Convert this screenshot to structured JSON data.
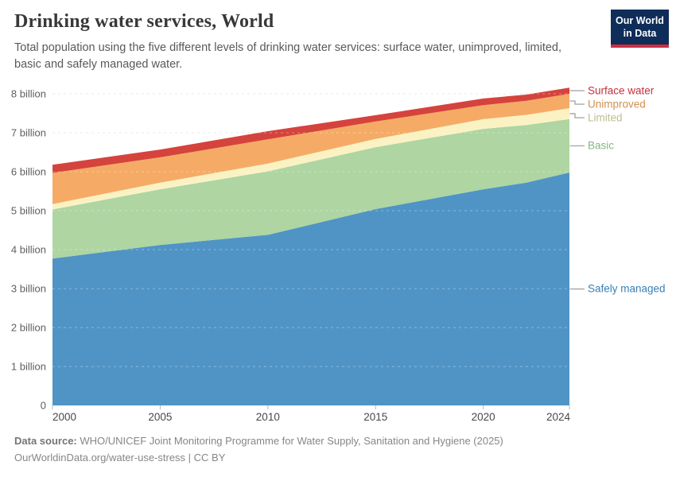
{
  "header": {
    "title": "Drinking water services, World",
    "subtitle": "Total population using the five different levels of drinking water services: surface water, unimproved, limited, basic and safely managed water.",
    "logo": {
      "line1": "Our World",
      "line2": "in Data"
    }
  },
  "footer": {
    "source_label": "Data source:",
    "source_text": "WHO/UNICEF Joint Monitoring Programme for Water Supply, Sanitation and Hygiene (2025)",
    "license_text": "OurWorldinData.org/water-use-stress | CC BY"
  },
  "colors": {
    "logo_bg": "#0f2d59",
    "logo_stripe": "#cf2e41",
    "grid": "#dcdcdc",
    "grid_overlay": "rgba(255,255,255,0.35)",
    "axis_tick": "#b8b8b8",
    "y_label": "#5e5e5e",
    "x_label": "#484848",
    "connector": "#a9a9a9"
  },
  "chart_data": {
    "type": "area",
    "stacked": true,
    "title": "Drinking water services, World",
    "unit": "billion people",
    "x": [
      2000,
      2005,
      2010,
      2015,
      2020,
      2022,
      2024
    ],
    "xlim": [
      2000,
      2024
    ],
    "ylim": [
      0,
      8.16
    ],
    "xticks": [
      2000,
      2005,
      2010,
      2015,
      2020,
      2024
    ],
    "ytick_values": [
      0,
      1,
      2,
      3,
      4,
      5,
      6,
      7,
      8
    ],
    "ytick_labels": [
      "0",
      "1 billion",
      "2 billion",
      "3 billion",
      "4 billion",
      "5 billion",
      "6 billion",
      "7 billion",
      "8 billion"
    ],
    "grid": true,
    "legend_position": "right",
    "series": [
      {
        "name": "Safely managed",
        "color": "#4f94c5",
        "label_color": "#3a80b5",
        "values": [
          3.77,
          4.12,
          4.38,
          5.04,
          5.55,
          5.72,
          5.98
        ]
      },
      {
        "name": "Basic",
        "color": "#aed5a2",
        "label_color": "#84b884",
        "values": [
          1.26,
          1.43,
          1.63,
          1.59,
          1.55,
          1.48,
          1.37
        ]
      },
      {
        "name": "Limited",
        "color": "#fbf2c3",
        "label_color": "#bdbe8e",
        "values": [
          0.14,
          0.17,
          0.2,
          0.21,
          0.25,
          0.26,
          0.28
        ]
      },
      {
        "name": "Unimproved",
        "color": "#f5ab66",
        "label_color": "#d0904f",
        "values": [
          0.8,
          0.65,
          0.62,
          0.45,
          0.36,
          0.36,
          0.37
        ]
      },
      {
        "name": "Surface water",
        "color": "#d5433d",
        "label_color": "#c52f3e",
        "values": [
          0.21,
          0.2,
          0.21,
          0.16,
          0.17,
          0.16,
          0.16
        ]
      }
    ]
  }
}
